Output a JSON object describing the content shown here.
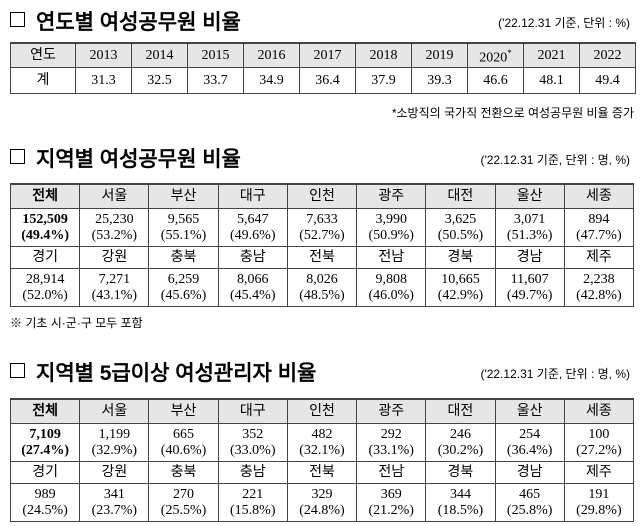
{
  "sections": [
    {
      "title": "연도별 여성공무원 비율",
      "unit_note": "('22.12.31 기준, 단위 : %)",
      "table": {
        "header": [
          "연도",
          "2013",
          "2014",
          "2015",
          "2016",
          "2017",
          "2018",
          "2019",
          {
            "text": "2020",
            "mark": "*"
          },
          "2021",
          "2022"
        ],
        "rows": [
          [
            "계",
            "31.3",
            "32.5",
            "33.7",
            "34.9",
            "36.4",
            "37.9",
            "39.3",
            "46.6",
            "48.1",
            "49.4"
          ]
        ]
      },
      "footnote": "*소방직의 국가직 전환으로 여성공무원 비율 증가"
    },
    {
      "title": "지역별 여성공무원 비율",
      "unit_note": "('22.12.31 기준, 단위 : 명, %)",
      "table": {
        "rows": [
          [
            "전체",
            "서울",
            "부산",
            "대구",
            "인천",
            "광주",
            "대전",
            "울산",
            "세종"
          ],
          [
            {
              "count": "152,509",
              "pct": "(49.4%)"
            },
            {
              "count": "25,230",
              "pct": "(53.2%)"
            },
            {
              "count": "9,565",
              "pct": "(55.1%)"
            },
            {
              "count": "5,647",
              "pct": "(49.6%)"
            },
            {
              "count": "7,633",
              "pct": "(52.7%)"
            },
            {
              "count": "3,990",
              "pct": "(50.9%)"
            },
            {
              "count": "3,625",
              "pct": "(50.5%)"
            },
            {
              "count": "3,071",
              "pct": "(51.3%)"
            },
            {
              "count": "894",
              "pct": "(47.7%)"
            }
          ],
          [
            "경기",
            "강원",
            "충북",
            "충남",
            "전북",
            "전남",
            "경북",
            "경남",
            "제주"
          ],
          [
            {
              "count": "28,914",
              "pct": "(52.0%)"
            },
            {
              "count": "7,271",
              "pct": "(43.1%)"
            },
            {
              "count": "6,259",
              "pct": "(45.6%)"
            },
            {
              "count": "8,066",
              "pct": "(45.4%)"
            },
            {
              "count": "8,026",
              "pct": "(48.5%)"
            },
            {
              "count": "9,808",
              "pct": "(46.0%)"
            },
            {
              "count": "10,665",
              "pct": "(42.9%)"
            },
            {
              "count": "11,607",
              "pct": "(49.7%)"
            },
            {
              "count": "2,238",
              "pct": "(42.8%)"
            }
          ]
        ]
      },
      "footnote": "※ 기초 시·군·구 모두 포함"
    },
    {
      "title": "지역별 5급이상 여성관리자 비율",
      "unit_note": "('22.12.31 기준, 단위 : 명, %)",
      "table": {
        "rows": [
          [
            "전체",
            "서울",
            "부산",
            "대구",
            "인천",
            "광주",
            "대전",
            "울산",
            "세종"
          ],
          [
            {
              "count": "7,109",
              "pct": "(27.4%)"
            },
            {
              "count": "1,199",
              "pct": "(32.9%)"
            },
            {
              "count": "665",
              "pct": "(40.6%)"
            },
            {
              "count": "352",
              "pct": "(33.0%)"
            },
            {
              "count": "482",
              "pct": "(32.1%)"
            },
            {
              "count": "292",
              "pct": "(33.1%)"
            },
            {
              "count": "246",
              "pct": "(30.2%)"
            },
            {
              "count": "254",
              "pct": "(36.4%)"
            },
            {
              "count": "100",
              "pct": "(27.2%)"
            }
          ],
          [
            "경기",
            "강원",
            "충북",
            "충남",
            "전북",
            "전남",
            "경북",
            "경남",
            "제주"
          ],
          [
            {
              "count": "989",
              "pct": "(24.5%)"
            },
            {
              "count": "341",
              "pct": "(23.7%)"
            },
            {
              "count": "270",
              "pct": "(25.5%)"
            },
            {
              "count": "221",
              "pct": "(15.8%)"
            },
            {
              "count": "329",
              "pct": "(24.8%)"
            },
            {
              "count": "369",
              "pct": "(21.2%)"
            },
            {
              "count": "344",
              "pct": "(18.5%)"
            },
            {
              "count": "465",
              "pct": "(25.8%)"
            },
            {
              "count": "191",
              "pct": "(29.8%)"
            }
          ]
        ]
      }
    }
  ]
}
